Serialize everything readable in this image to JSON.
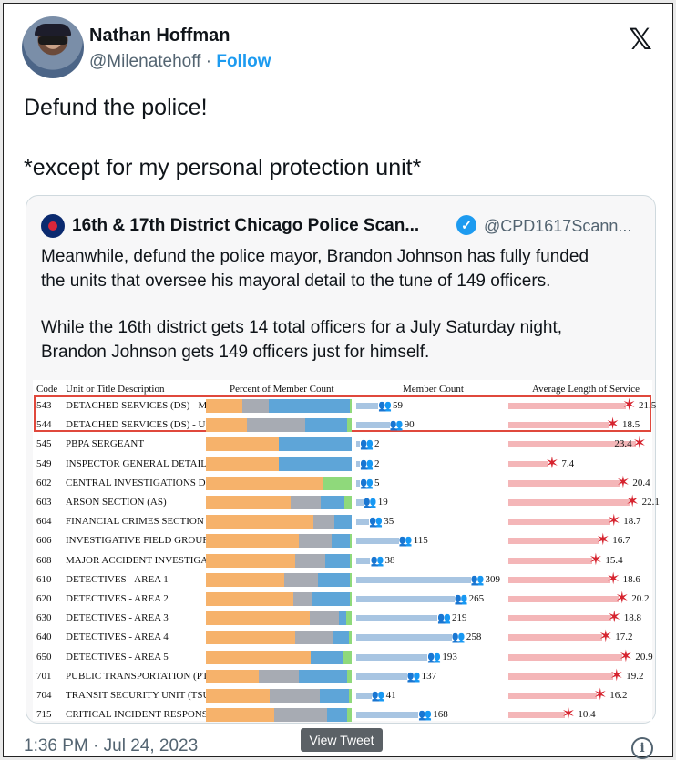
{
  "author": {
    "name": "Nathan Hoffman",
    "handle": "@Milenatehoff",
    "separator": "·",
    "follow_label": "Follow"
  },
  "tweet": {
    "line1": "Defund the police!",
    "line2": "*except for my personal protection unit*"
  },
  "quote": {
    "name": "16th & 17th District Chicago Police Scan...",
    "handle": "@CPD1617Scann...",
    "lines": [
      "Meanwhile, defund the police mayor, Brandon Johnson has fully funded",
      "the units that oversee his mayoral detail to the tune of 149 officers.",
      "",
      "While the 16th district gets 14 total officers for a July Saturday night,",
      "Brandon Johnson gets 149 officers just for himself."
    ]
  },
  "table": {
    "headers": {
      "code": "Code",
      "desc": "Unit or Title Description",
      "pct": "Percent of Member Count",
      "count": "Member Count",
      "service": "Average Length of Service"
    },
    "rows": [
      {
        "code": "543",
        "desc": "DETACHED SERVICES (DS) - M",
        "count": "59",
        "count_value": 59,
        "service": "21.5",
        "service_value": 21.5,
        "pct": [
          25,
          18,
          56,
          1
        ]
      },
      {
        "code": "544",
        "desc": "DETACHED SERVICES (DS) - U",
        "count": "90",
        "count_value": 90,
        "service": "18.5",
        "service_value": 18.5,
        "pct": [
          28,
          40,
          29,
          3
        ]
      },
      {
        "code": "545",
        "desc": "PBPA SERGEANT",
        "count": "2",
        "count_value": 2,
        "service": "23.4",
        "service_value": 23.4,
        "pct": [
          50,
          0,
          50,
          0
        ]
      },
      {
        "code": "549",
        "desc": "INSPECTOR GENERAL DETAIL",
        "count": "2",
        "count_value": 2,
        "service": "7.4",
        "service_value": 7.4,
        "pct": [
          50,
          0,
          50,
          0
        ]
      },
      {
        "code": "602",
        "desc": "CENTRAL INVESTIGATIONS D",
        "count": "5",
        "count_value": 5,
        "service": "20.4",
        "service_value": 20.4,
        "pct": [
          80,
          0,
          0,
          20
        ]
      },
      {
        "code": "603",
        "desc": "ARSON SECTION (AS)",
        "count": "19",
        "count_value": 19,
        "service": "22.1",
        "service_value": 22.1,
        "pct": [
          58,
          21,
          16,
          5
        ]
      },
      {
        "code": "604",
        "desc": "FINANCIAL CRIMES SECTION",
        "count": "35",
        "count_value": 35,
        "service": "18.7",
        "service_value": 18.7,
        "pct": [
          74,
          14,
          12,
          0
        ]
      },
      {
        "code": "606",
        "desc": "INVESTIGATIVE FIELD GROUF",
        "count": "115",
        "count_value": 115,
        "service": "16.7",
        "service_value": 16.7,
        "pct": [
          64,
          22,
          13,
          1
        ]
      },
      {
        "code": "608",
        "desc": "MAJOR ACCIDENT INVESTIGA",
        "count": "38",
        "count_value": 38,
        "service": "15.4",
        "service_value": 15.4,
        "pct": [
          61,
          21,
          17,
          1
        ]
      },
      {
        "code": "610",
        "desc": "DETECTIVES - AREA 1",
        "count": "309",
        "count_value": 309,
        "service": "18.6",
        "service_value": 18.6,
        "pct": [
          54,
          23,
          22,
          1
        ]
      },
      {
        "code": "620",
        "desc": "DETECTIVES - AREA 2",
        "count": "265",
        "count_value": 265,
        "service": "20.2",
        "service_value": 20.2,
        "pct": [
          60,
          13,
          26,
          1
        ]
      },
      {
        "code": "630",
        "desc": "DETECTIVES - AREA 3",
        "count": "219",
        "count_value": 219,
        "service": "18.8",
        "service_value": 18.8,
        "pct": [
          71,
          20,
          5,
          4
        ]
      },
      {
        "code": "640",
        "desc": "DETECTIVES - AREA 4",
        "count": "258",
        "count_value": 258,
        "service": "17.2",
        "service_value": 17.2,
        "pct": [
          61,
          26,
          11,
          2
        ]
      },
      {
        "code": "650",
        "desc": "DETECTIVES - AREA 5",
        "count": "193",
        "count_value": 193,
        "service": "20.9",
        "service_value": 20.9,
        "pct": [
          72,
          0,
          22,
          6
        ]
      },
      {
        "code": "701",
        "desc": "PUBLIC TRANSPORTATION (PT",
        "count": "137",
        "count_value": 137,
        "service": "19.2",
        "service_value": 19.2,
        "pct": [
          36,
          28,
          33,
          3
        ]
      },
      {
        "code": "704",
        "desc": "TRANSIT SECURITY UNIT (TSU",
        "count": "41",
        "count_value": 41,
        "service": "16.2",
        "service_value": 16.2,
        "pct": [
          44,
          34,
          20,
          2
        ]
      },
      {
        "code": "715",
        "desc": "CRITICAL INCIDENT RESPONS",
        "count": "168",
        "count_value": 168,
        "service": "10.4",
        "service_value": 10.4,
        "pct": [
          47,
          36,
          14,
          3
        ]
      }
    ],
    "pct_colors": [
      "#f6b26b",
      "#a7abb3",
      "#5ea5d8",
      "#8fd97b"
    ]
  },
  "footer": {
    "timestamp": "1:36 PM · Jul 24, 2023",
    "view_tweet": "View Tweet",
    "info_symbol": "i"
  },
  "icons": {
    "x_logo": "𝕏",
    "verified": "✓"
  }
}
